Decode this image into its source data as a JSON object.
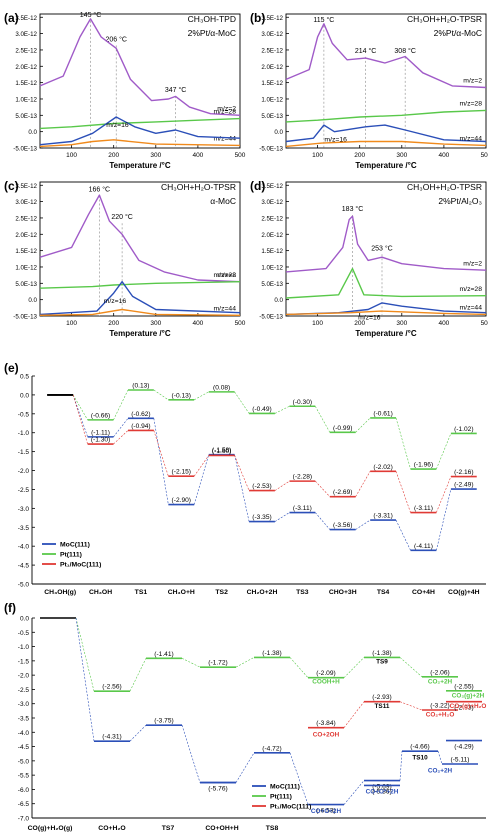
{
  "colors": {
    "purple": "#A05BC8",
    "green": "#59C84A",
    "blue": "#2B4FB8",
    "orange": "#F08A1C",
    "red": "#E03A35",
    "grid_grey": "#9a9a9a",
    "axis": "#000000"
  },
  "tpd_axes": {
    "xlabel": "Temperature /°C",
    "xticks": [
      "100",
      "200",
      "300",
      "400",
      "500"
    ],
    "yticks": [
      "3.5E-12",
      "3.0E-12",
      "2.5E-12",
      "2.0E-12",
      "1.5E-12",
      "1.0E-12",
      "5.0E-13",
      "0.0",
      "-5.0E-13"
    ]
  },
  "chart_data": [
    {
      "type": "line",
      "panel": "(a)",
      "title": "CH3OH-TPD",
      "subtitle": "2%Pt/α-MoC",
      "xlabel": "Temperature /°C",
      "xlim": [
        25,
        500
      ],
      "ylim": [
        -5e-13,
        3.6e-12
      ],
      "peaks": [
        {
          "x": 145,
          "label": "145 °C",
          "y": 3.45e-12
        },
        {
          "x": 206,
          "label": "206 °C",
          "y": 2.7e-12
        },
        {
          "x": 347,
          "label": "347 °C",
          "y": 1.15e-12
        }
      ],
      "series": [
        {
          "name": "m/z=2",
          "color_key": "purple",
          "points": [
            [
              25,
              1.4e-12
            ],
            [
              80,
              1.7e-12
            ],
            [
              120,
              2.9e-12
            ],
            [
              145,
              3.45e-12
            ],
            [
              170,
              2.9e-12
            ],
            [
              206,
              2.55e-12
            ],
            [
              240,
              1.6e-12
            ],
            [
              290,
              9.5e-13
            ],
            [
              330,
              1e-12
            ],
            [
              347,
              1.08e-12
            ],
            [
              380,
              7.5e-13
            ],
            [
              430,
              5.5e-13
            ],
            [
              500,
              5e-13
            ]
          ]
        },
        {
          "name": "m/z=28",
          "color_key": "green",
          "points": [
            [
              25,
              1e-13
            ],
            [
              100,
              1.5e-13
            ],
            [
              200,
              2.5e-13
            ],
            [
              300,
              3e-13
            ],
            [
              400,
              3.5e-13
            ],
            [
              500,
              4e-13
            ]
          ]
        },
        {
          "name": "m/z=44",
          "color_key": "orange",
          "points": [
            [
              25,
              -4.5e-13
            ],
            [
              100,
              -4e-13
            ],
            [
              150,
              -3e-13
            ],
            [
              200,
              -2.5e-13
            ],
            [
              300,
              -3.8e-13
            ],
            [
              500,
              -4.2e-13
            ]
          ]
        },
        {
          "name": "m/z=16",
          "color_key": "blue",
          "points": [
            [
              25,
              -4e-13
            ],
            [
              100,
              -3e-13
            ],
            [
              150,
              -5e-14
            ],
            [
              206,
              4.5e-13
            ],
            [
              250,
              1.5e-13
            ],
            [
              300,
              -5e-14
            ],
            [
              347,
              5e-14
            ],
            [
              400,
              -1.5e-13
            ],
            [
              500,
              -2e-13
            ]
          ]
        }
      ],
      "series_labels": [
        "m/z=2",
        "m/z=28",
        "m/z=44",
        "m/z=16"
      ]
    },
    {
      "type": "line",
      "panel": "(b)",
      "title": "CH3OH+H2O-TPSR",
      "subtitle": "2%Pt/α-MoC",
      "xlabel": "Temperature /°C",
      "xlim": [
        25,
        500
      ],
      "ylim": [
        -5e-13,
        3.6e-12
      ],
      "peaks": [
        {
          "x": 115,
          "label": "115 °C",
          "y": 3.3e-12
        },
        {
          "x": 214,
          "label": "214 °C",
          "y": 2.35e-12
        },
        {
          "x": 308,
          "label": "308 °C",
          "y": 2.35e-12
        }
      ],
      "series": [
        {
          "name": "m/z=2",
          "color_key": "purple",
          "points": [
            [
              25,
              1.6e-12
            ],
            [
              80,
              1.9e-12
            ],
            [
              100,
              2.9e-12
            ],
            [
              115,
              3.3e-12
            ],
            [
              135,
              2.7e-12
            ],
            [
              170,
              2.2e-12
            ],
            [
              214,
              2.25e-12
            ],
            [
              260,
              2.1e-12
            ],
            [
              308,
              2.3e-12
            ],
            [
              350,
              1.8e-12
            ],
            [
              420,
              1.4e-12
            ],
            [
              500,
              1.35e-12
            ]
          ]
        },
        {
          "name": "m/z=28",
          "color_key": "green",
          "points": [
            [
              25,
              3e-13
            ],
            [
              100,
              3.5e-13
            ],
            [
              200,
              4.5e-13
            ],
            [
              300,
              5e-13
            ],
            [
              400,
              6e-13
            ],
            [
              500,
              6.5e-13
            ]
          ]
        },
        {
          "name": "m/z=16",
          "color_key": "blue",
          "points": [
            [
              25,
              -3e-13
            ],
            [
              90,
              -2e-13
            ],
            [
              115,
              2e-13
            ],
            [
              140,
              0.0
            ],
            [
              214,
              1.5e-13
            ],
            [
              260,
              2e-13
            ],
            [
              308,
              5e-14
            ],
            [
              400,
              -2.5e-13
            ],
            [
              500,
              -3e-13
            ]
          ]
        },
        {
          "name": "m/z=44",
          "color_key": "orange",
          "points": [
            [
              25,
              -4.5e-13
            ],
            [
              110,
              -3.5e-13
            ],
            [
              200,
              -3e-13
            ],
            [
              300,
              -3e-13
            ],
            [
              400,
              -3.8e-13
            ],
            [
              500,
              -4.2e-13
            ]
          ]
        }
      ],
      "series_labels": [
        "m/z=2",
        "m/z=28",
        "m/z=16",
        "m/z=44"
      ]
    },
    {
      "type": "line",
      "panel": "(c)",
      "title": "CH3OH+H2O-TPSR",
      "subtitle": "α-MoC",
      "xlabel": "Temperature /°C",
      "xlim": [
        25,
        500
      ],
      "ylim": [
        -5e-13,
        3.6e-12
      ],
      "peaks": [
        {
          "x": 166,
          "label": "166 °C",
          "y": 3.25e-12
        },
        {
          "x": 220,
          "label": "220 °C",
          "y": 2.4e-12
        }
      ],
      "series": [
        {
          "name": "m/z=2",
          "color_key": "purple",
          "points": [
            [
              25,
              1.3e-12
            ],
            [
              100,
              1.6e-12
            ],
            [
              140,
              2.6e-12
            ],
            [
              166,
              3.2e-12
            ],
            [
              190,
              2.4e-12
            ],
            [
              220,
              2e-12
            ],
            [
              260,
              1.2e-12
            ],
            [
              320,
              8.5e-13
            ],
            [
              400,
              6e-13
            ],
            [
              500,
              5.5e-13
            ]
          ]
        },
        {
          "name": "m/z=28",
          "color_key": "green",
          "points": [
            [
              25,
              3.5e-13
            ],
            [
              150,
              4e-13
            ],
            [
              200,
              4.5e-13
            ],
            [
              300,
              5e-13
            ],
            [
              500,
              5.5e-13
            ]
          ]
        },
        {
          "name": "m/z=16",
          "color_key": "blue",
          "points": [
            [
              25,
              -4.5e-13
            ],
            [
              160,
              -3.5e-13
            ],
            [
              200,
              2e-13
            ],
            [
              220,
              5.5e-13
            ],
            [
              245,
              1e-13
            ],
            [
              300,
              -3e-13
            ],
            [
              500,
              -4e-13
            ]
          ]
        },
        {
          "name": "m/z=44",
          "color_key": "orange",
          "points": [
            [
              25,
              -4.8e-13
            ],
            [
              150,
              -4.5e-13
            ],
            [
              220,
              -3e-13
            ],
            [
              300,
              -4.5e-13
            ],
            [
              500,
              -4.8e-13
            ]
          ]
        }
      ],
      "series_labels": [
        "m/z=2",
        "m/z=28",
        "m/z=16",
        "m/z=44"
      ]
    },
    {
      "type": "line",
      "panel": "(d)",
      "title": "CH3OH+H2O-TPSR",
      "subtitle": "2%Pt/Al2O3",
      "xlabel": "Temperature /°C",
      "xlim": [
        25,
        500
      ],
      "ylim": [
        -5e-13,
        3.6e-12
      ],
      "peaks": [
        {
          "x": 183,
          "label": "183 °C",
          "y": 2.65e-12
        },
        {
          "x": 253,
          "label": "253 °C",
          "y": 1.45e-12
        }
      ],
      "series": [
        {
          "name": "m/z=2",
          "color_key": "purple",
          "points": [
            [
              25,
              8.5e-13
            ],
            [
              120,
              9.5e-13
            ],
            [
              160,
              1.6e-12
            ],
            [
              175,
              2.45e-12
            ],
            [
              183,
              2.55e-12
            ],
            [
              195,
              1.7e-12
            ],
            [
              220,
              1.2e-12
            ],
            [
              253,
              1.3e-12
            ],
            [
              300,
              1.1e-12
            ],
            [
              400,
              9.5e-13
            ],
            [
              500,
              9e-13
            ]
          ]
        },
        {
          "name": "m/z=28",
          "color_key": "green",
          "points": [
            [
              25,
              5e-14
            ],
            [
              150,
              1.5e-13
            ],
            [
              183,
              9.5e-13
            ],
            [
              210,
              1.5e-13
            ],
            [
              300,
              1e-13
            ],
            [
              500,
              1.2e-13
            ]
          ]
        },
        {
          "name": "m/z=16",
          "color_key": "blue",
          "points": [
            [
              25,
              -4.5e-13
            ],
            [
              150,
              -4e-13
            ],
            [
              220,
              -3e-13
            ],
            [
              253,
              -1e-13
            ],
            [
              300,
              -2e-13
            ],
            [
              400,
              -3.5e-13
            ],
            [
              500,
              -4e-13
            ]
          ]
        },
        {
          "name": "m/z=44",
          "color_key": "orange",
          "points": [
            [
              25,
              -4.5e-13
            ],
            [
              180,
              -4e-13
            ],
            [
              250,
              -3.5e-13
            ],
            [
              400,
              -4.2e-13
            ],
            [
              500,
              -4.5e-13
            ]
          ]
        }
      ],
      "series_labels": [
        "m/z=2",
        "m/z=28",
        "m/z=16",
        "m/z=44"
      ]
    },
    {
      "type": "line",
      "panel": "(e)",
      "ylim": [
        -5.0,
        0.5
      ],
      "yticks": [
        "0.5",
        "0.0",
        "-0.5",
        "-1.0",
        "-1.5",
        "-2.0",
        "-2.5",
        "-3.0",
        "-3.5",
        "-4.0",
        "-4.5",
        "-5.0"
      ],
      "categories": [
        "CH3OH(g)",
        "CH3OH",
        "TS1",
        "CH3O+H",
        "TS2",
        "CH2O+2H",
        "TS3",
        "CHO+3H",
        "TS4",
        "CO+4H",
        "CO(g)+4H"
      ],
      "category_labels": [
        "CH₃OH(g)",
        "CH₃OH",
        "TS1",
        "CH₃O+H",
        "TS2",
        "CH₂O+2H",
        "TS3",
        "CHO+3H",
        "TS4",
        "CO+4H",
        "CO(g)+4H"
      ],
      "series": [
        {
          "name": "MoC(111)",
          "color_key": "blue",
          "values": [
            0.0,
            -1.11,
            -0.62,
            -2.9,
            -1.58,
            -3.35,
            -3.11,
            -3.56,
            -3.31,
            -4.11,
            -2.49
          ]
        },
        {
          "name": "Pt(111)",
          "color_key": "green",
          "values": [
            0.0,
            -0.66,
            0.13,
            -0.13,
            0.08,
            -0.49,
            -0.3,
            -0.99,
            -0.61,
            -1.96,
            -1.02
          ]
        },
        {
          "name": "Pt1/MoC(111)",
          "color_key": "red",
          "values": [
            0.0,
            -1.3,
            -0.94,
            -2.15,
            -1.6,
            -2.53,
            -2.28,
            -2.69,
            -2.02,
            -3.11,
            -2.16
          ]
        }
      ],
      "legend": [
        "MoC(111)",
        "Pt(111)",
        "Pt₁/MoC(111)"
      ]
    },
    {
      "type": "line",
      "panel": "(f)",
      "ylim": [
        -7.0,
        0.0
      ],
      "yticks": [
        "0.0",
        "-0.5",
        "-1.0",
        "-1.5",
        "-2.0",
        "-2.5",
        "-3.0",
        "-3.5",
        "-4.0",
        "-4.5",
        "-5.0",
        "-5.5",
        "-6.0",
        "-6.5",
        "-7.0"
      ],
      "categories": [
        "CO(g)+H2O(g)",
        "CO+H2O",
        "TS7",
        "CO+OH+H",
        "TS8",
        "CO+O+2H",
        "TS9/TS10/TS11",
        "CO2+2H",
        "CO2(g)+2H"
      ],
      "category_labels": [
        "CO(g)+H₂O(g)",
        "CO+H₂O",
        "TS7",
        "CO+OH+H",
        "TS8"
      ],
      "series": [
        {
          "name": "MoC(111)",
          "color_key": "blue",
          "labels": [
            "(-4.31)",
            "(-3.75)",
            "(-5.76)",
            "(-4.72)",
            "(-6.53)",
            "(-5.69)",
            "(-5.86)",
            "(-4.66)",
            "(-5.11)",
            "(-4.29)"
          ]
        },
        {
          "name": "Pt(111)",
          "color_key": "green",
          "labels": [
            "(-2.56)",
            "(-1.41)",
            "(-1.72)",
            "(-1.38)",
            "(-2.09)",
            "(-1.38)",
            "(-2.06)",
            "(-2.55)"
          ]
        },
        {
          "name": "Pt1/MoC(111)",
          "color_key": "red",
          "labels": [
            "(-3.84)",
            "(-2.93)",
            "(-3.22)",
            "(-2.93)"
          ]
        }
      ],
      "state_labels": [
        "COOH+H",
        "TS9",
        "CO+2OH",
        "TS11",
        "CO₂+2H",
        "CO₂+H₂O",
        "CO₂(g)+2H",
        "CO₂(g)+H₂O",
        "CO+O+2H",
        "CO+O*+2H",
        "TS10",
        "CO₂+2H"
      ],
      "legend": [
        "MoC(111)",
        "Pt(111)",
        "Pt₁/MoC(111)"
      ]
    }
  ],
  "panel_letters": [
    "(a)",
    "(b)",
    "(c)",
    "(d)",
    "(e)",
    "(f)"
  ],
  "panel_titles": {
    "a": "CH₃OH-TPD",
    "a2": "2%Pt/α-MoC",
    "b": "CH₃OH+H₂O-TPSR",
    "b2": "2%Pt/α-MoC",
    "c": "CH₃OH+H₂O-TPSR",
    "c2": "α-MoC",
    "d": "CH₃OH+H₂O-TPSR",
    "d2": "2%Pt/Al₂O₃"
  },
  "e_labels": {
    "blue": [
      "(-1.11)",
      "(-0.62)",
      "(-2.90)",
      "(-1.58)",
      "(-3.35)",
      "(-3.11)",
      "(-3.56)",
      "(-3.31)",
      "(-4.11)",
      "(-2.49)"
    ],
    "green": [
      "(-0.66)",
      "(0.13)",
      "(-0.13)",
      "(0.08)",
      "(-0.49)",
      "(-0.30)",
      "(-0.99)",
      "(-0.61)",
      "(-1.96)",
      "(-1.02)"
    ],
    "red": [
      "(-1.30)",
      "(-0.94)",
      "(-2.15)",
      "(-1.60)",
      "(-2.53)",
      "(-2.28)",
      "(-2.69)",
      "(-2.02)",
      "(-3.11)",
      "(-2.16)"
    ]
  }
}
